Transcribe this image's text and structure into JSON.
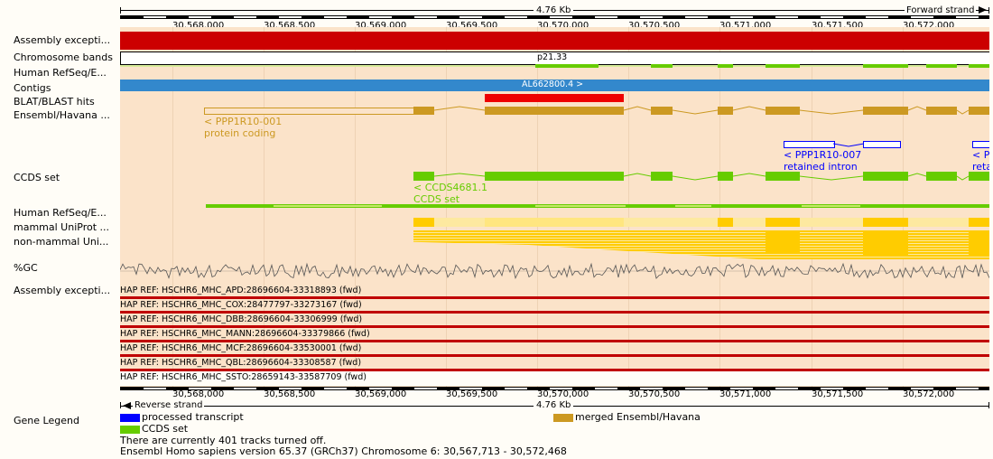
{
  "scale": {
    "top_label": "4.76 Kb",
    "forward_strand": "Forward strand",
    "bottom_label": "4.76 Kb",
    "reverse_strand": "Reverse strand",
    "positions": [
      "30,568,000",
      "30,568,500",
      "30,569,000",
      "30,569,500",
      "30,570,000",
      "30,570,500",
      "30,571,000",
      "30,571,500",
      "30,572,000"
    ]
  },
  "tracks": {
    "assembly_exceptions_1": "Assembly excepti...",
    "chromosome_bands": "Chromosome bands",
    "human_refseq_1": "Human RefSeq/E...",
    "contigs": "Contigs",
    "blat_hits": "BLAT/BLAST hits",
    "ensembl_havana": "Ensembl/Havana ...",
    "ccds_set": "CCDS set",
    "human_refseq_2": "Human RefSeq/E...",
    "mammal_uniprot": "mammal UniProt ...",
    "nonmammal_uniprot": "non-mammal Uni...",
    "gc": "%GC",
    "assembly_exceptions_2": "Assembly excepti..."
  },
  "features": {
    "band": "p21.33",
    "contig": "AL662800.4 >",
    "transcript1_name": "< PPP1R10-001",
    "transcript1_type": "protein coding",
    "transcript2_name": "< PPP1R10-007",
    "transcript2_type": "retained intron",
    "transcript3_name": "< PP",
    "transcript3_type": "reta",
    "ccds_name": "< CCDS4681.1",
    "ccds_type": "CCDS set"
  },
  "haplotypes": [
    "HAP REF: HSCHR6_MHC_APD:28696604-33318893 (fwd)",
    "HAP REF: HSCHR6_MHC_COX:28477797-33273167 (fwd)",
    "HAP REF: HSCHR6_MHC_DBB:28696604-33306999 (fwd)",
    "HAP REF: HSCHR6_MHC_MANN:28696604-33379866 (fwd)",
    "HAP REF: HSCHR6_MHC_MCF:28696604-33530001 (fwd)",
    "HAP REF: HSCHR6_MHC_QBL:28696604-33308587 (fwd)",
    "HAP REF: HSCHR6_MHC_SSTO:28659143-33587709 (fwd)"
  ],
  "legend": {
    "title": "Gene Legend",
    "items": [
      {
        "label": "processed transcript",
        "color": "#0000ff"
      },
      {
        "label": "CCDS set",
        "color": "#66cc00"
      },
      {
        "label": "merged Ensembl/Havana",
        "color": "#cc9922"
      }
    ]
  },
  "footer": {
    "tracks_off": "There are currently 401 tracks turned off.",
    "version": "Ensembl Homo sapiens version 65.37 (GRCh37) Chromosome 6: 30,567,713 - 30,572,468"
  },
  "colors": {
    "assembly_exception": "#cc0000",
    "contig": "#3388cc",
    "ensembl_havana": "#cc9922",
    "ccds": "#66cc00",
    "processed_transcript": "#0000ff",
    "uniprot": "#ffcc00",
    "blat": "#ee0000"
  }
}
